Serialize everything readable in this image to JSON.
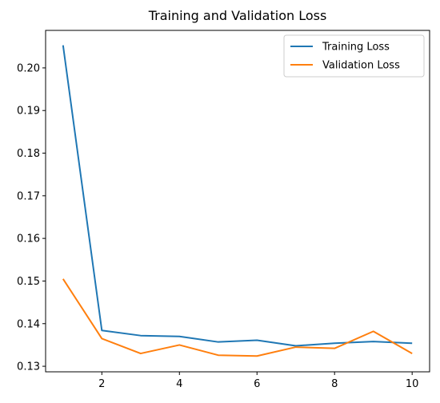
{
  "chart_data": {
    "type": "line",
    "title": "Training and Validation Loss",
    "xlabel": "",
    "ylabel": "",
    "x": [
      1,
      2,
      3,
      4,
      5,
      6,
      7,
      8,
      9,
      10
    ],
    "xlim": [
      0.55,
      10.45
    ],
    "ylim": [
      0.1287,
      0.2088
    ],
    "xticks": [
      2,
      4,
      6,
      8,
      10
    ],
    "yticks": [
      0.13,
      0.14,
      0.15,
      0.16,
      0.17,
      0.18,
      0.19,
      0.2
    ],
    "xtick_labels": [
      "2",
      "4",
      "6",
      "8",
      "10"
    ],
    "ytick_labels": [
      "0.13",
      "0.14",
      "0.15",
      "0.16",
      "0.17",
      "0.18",
      "0.19",
      "0.20"
    ],
    "grid": false,
    "legend_position": "top-right",
    "series": [
      {
        "name": "Training Loss",
        "color": "#1f77b4",
        "values": [
          0.2053,
          0.1384,
          0.1372,
          0.137,
          0.1357,
          0.1361,
          0.1348,
          0.1354,
          0.1358,
          0.1354
        ]
      },
      {
        "name": "Validation Loss",
        "color": "#ff7f0e",
        "values": [
          0.1505,
          0.1365,
          0.133,
          0.135,
          0.1326,
          0.1324,
          0.1345,
          0.1342,
          0.1382,
          0.133
        ]
      }
    ]
  }
}
